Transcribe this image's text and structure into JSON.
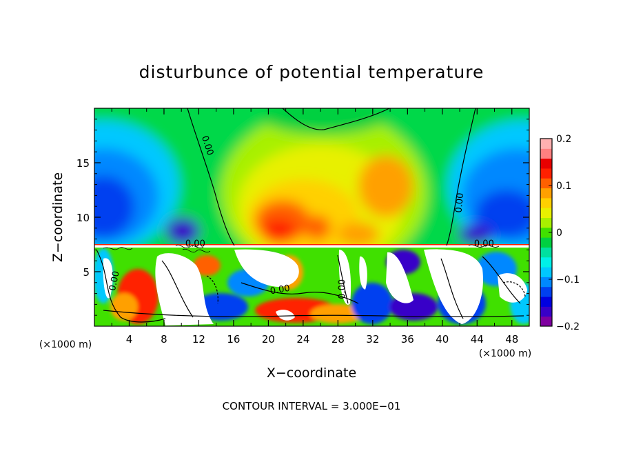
{
  "chart_data": {
    "type": "heatmap",
    "title": "disturbunce of potential temperature",
    "xlabel": "X−coordinate",
    "ylabel": "Z−coordinate",
    "x_unit_left": "(×1000 m)",
    "x_unit_right": "(×1000 m)",
    "footer": "CONTOUR INTERVAL = 3.000E−01",
    "x_range": [
      0,
      50
    ],
    "y_range": [
      0,
      20
    ],
    "x_ticks": [
      {
        "value": 4,
        "label": "4"
      },
      {
        "value": 8,
        "label": "8"
      },
      {
        "value": 12,
        "label": "12"
      },
      {
        "value": 16,
        "label": "16"
      },
      {
        "value": 20,
        "label": "20"
      },
      {
        "value": 24,
        "label": "24"
      },
      {
        "value": 28,
        "label": "28"
      },
      {
        "value": 32,
        "label": "32"
      },
      {
        "value": 36,
        "label": "36"
      },
      {
        "value": 40,
        "label": "40"
      },
      {
        "value": 44,
        "label": "44"
      },
      {
        "value": 48,
        "label": "48"
      }
    ],
    "y_ticks": [
      {
        "value": 5,
        "label": "5"
      },
      {
        "value": 10,
        "label": "10"
      },
      {
        "value": 15,
        "label": "15"
      }
    ],
    "colorbar": {
      "range": [
        -0.2,
        0.2
      ],
      "ticks": [
        {
          "value": 0.2,
          "label": "0.2"
        },
        {
          "value": 0.1,
          "label": "0.1"
        },
        {
          "value": 0,
          "label": "0"
        },
        {
          "value": -0.1,
          "label": "−0.1"
        },
        {
          "value": -0.2,
          "label": "−0.2"
        }
      ],
      "colors": [
        "#7f00a0",
        "#3800c8",
        "#0000e0",
        "#0040f0",
        "#0088ff",
        "#00c8ff",
        "#00f0e8",
        "#00e0a0",
        "#00d040",
        "#40e000",
        "#a8f000",
        "#e8f000",
        "#ffd000",
        "#ffa000",
        "#ff6000",
        "#ff2000",
        "#e80000",
        "#ff8080",
        "#ffb0b0"
      ]
    },
    "contour_labels": [
      {
        "x": 12.7,
        "z": 16.5,
        "text": "0.00",
        "angle": 72
      },
      {
        "x": 42.3,
        "z": 11.3,
        "text": "0.00",
        "angle": -85
      },
      {
        "x": 2.6,
        "z": 4.1,
        "text": "0.00",
        "angle": -78
      },
      {
        "x": 21.4,
        "z": 3.1,
        "text": "0.00",
        "angle": -10
      },
      {
        "x": 28.8,
        "z": 3.4,
        "text": "0.00",
        "angle": -90
      },
      {
        "x": 11.6,
        "z": 7.3,
        "text": "0.00",
        "angle": 0
      },
      {
        "x": 44.8,
        "z": 7.3,
        "text": "0.00",
        "angle": 0
      }
    ]
  }
}
